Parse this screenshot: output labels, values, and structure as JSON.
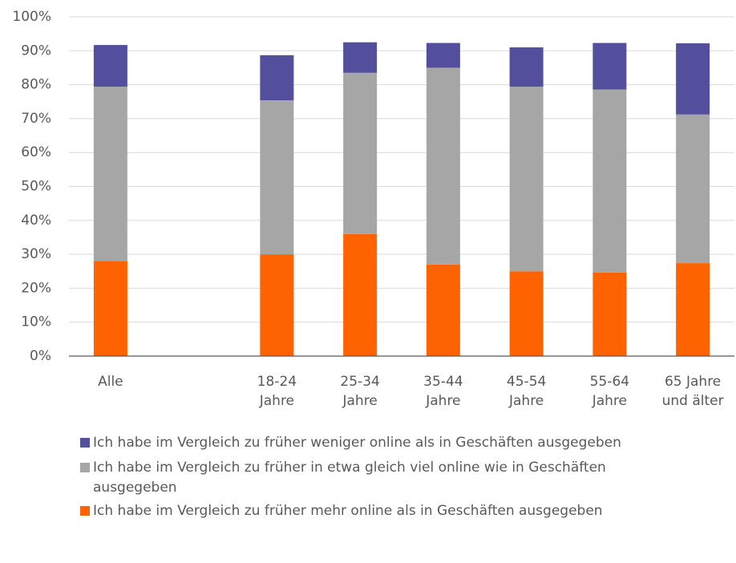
{
  "chart_data": {
    "type": "stacked_bar",
    "categories": [
      "Alle",
      null,
      "18-24\nJahre",
      "25-34\nJahre",
      "35-44\nJahre",
      "45-54\nJahre",
      "55-64\nJahre",
      "65 Jahre\nund älter"
    ],
    "series": [
      {
        "name": "Ich habe im Vergleich zu früher mehr online als in Geschäften ausgegeben",
        "color": "#ff6200",
        "values": [
          28,
          null,
          30,
          36,
          27,
          25,
          24.6,
          27.4
        ]
      },
      {
        "name": "Ich habe im Vergleich zu früher in etwa gleich viel online wie in Geschäften ausgegeben",
        "color": "#a6a6a6",
        "values": [
          51.4,
          null,
          45.4,
          47.5,
          58,
          54.4,
          54,
          43.8
        ]
      },
      {
        "name": "Ich habe im Vergleich zu früher weniger online als in Geschäften ausgegeben",
        "color": "#534f9c",
        "values": [
          12.3,
          null,
          13.3,
          9,
          7.3,
          11.6,
          13.7,
          21
        ]
      }
    ],
    "ylim": [
      0,
      100
    ],
    "yticks": [
      {
        "value": 0,
        "label": "0%"
      },
      {
        "value": 10,
        "label": "10%"
      },
      {
        "value": 20,
        "label": "20%"
      },
      {
        "value": 30,
        "label": "30%"
      },
      {
        "value": 40,
        "label": "40%"
      },
      {
        "value": 50,
        "label": "50%"
      },
      {
        "value": 60,
        "label": "60%"
      },
      {
        "value": 70,
        "label": "70%"
      },
      {
        "value": 80,
        "label": "80%"
      },
      {
        "value": 90,
        "label": "90%"
      },
      {
        "value": 100,
        "label": "100%"
      }
    ],
    "grid": true
  }
}
